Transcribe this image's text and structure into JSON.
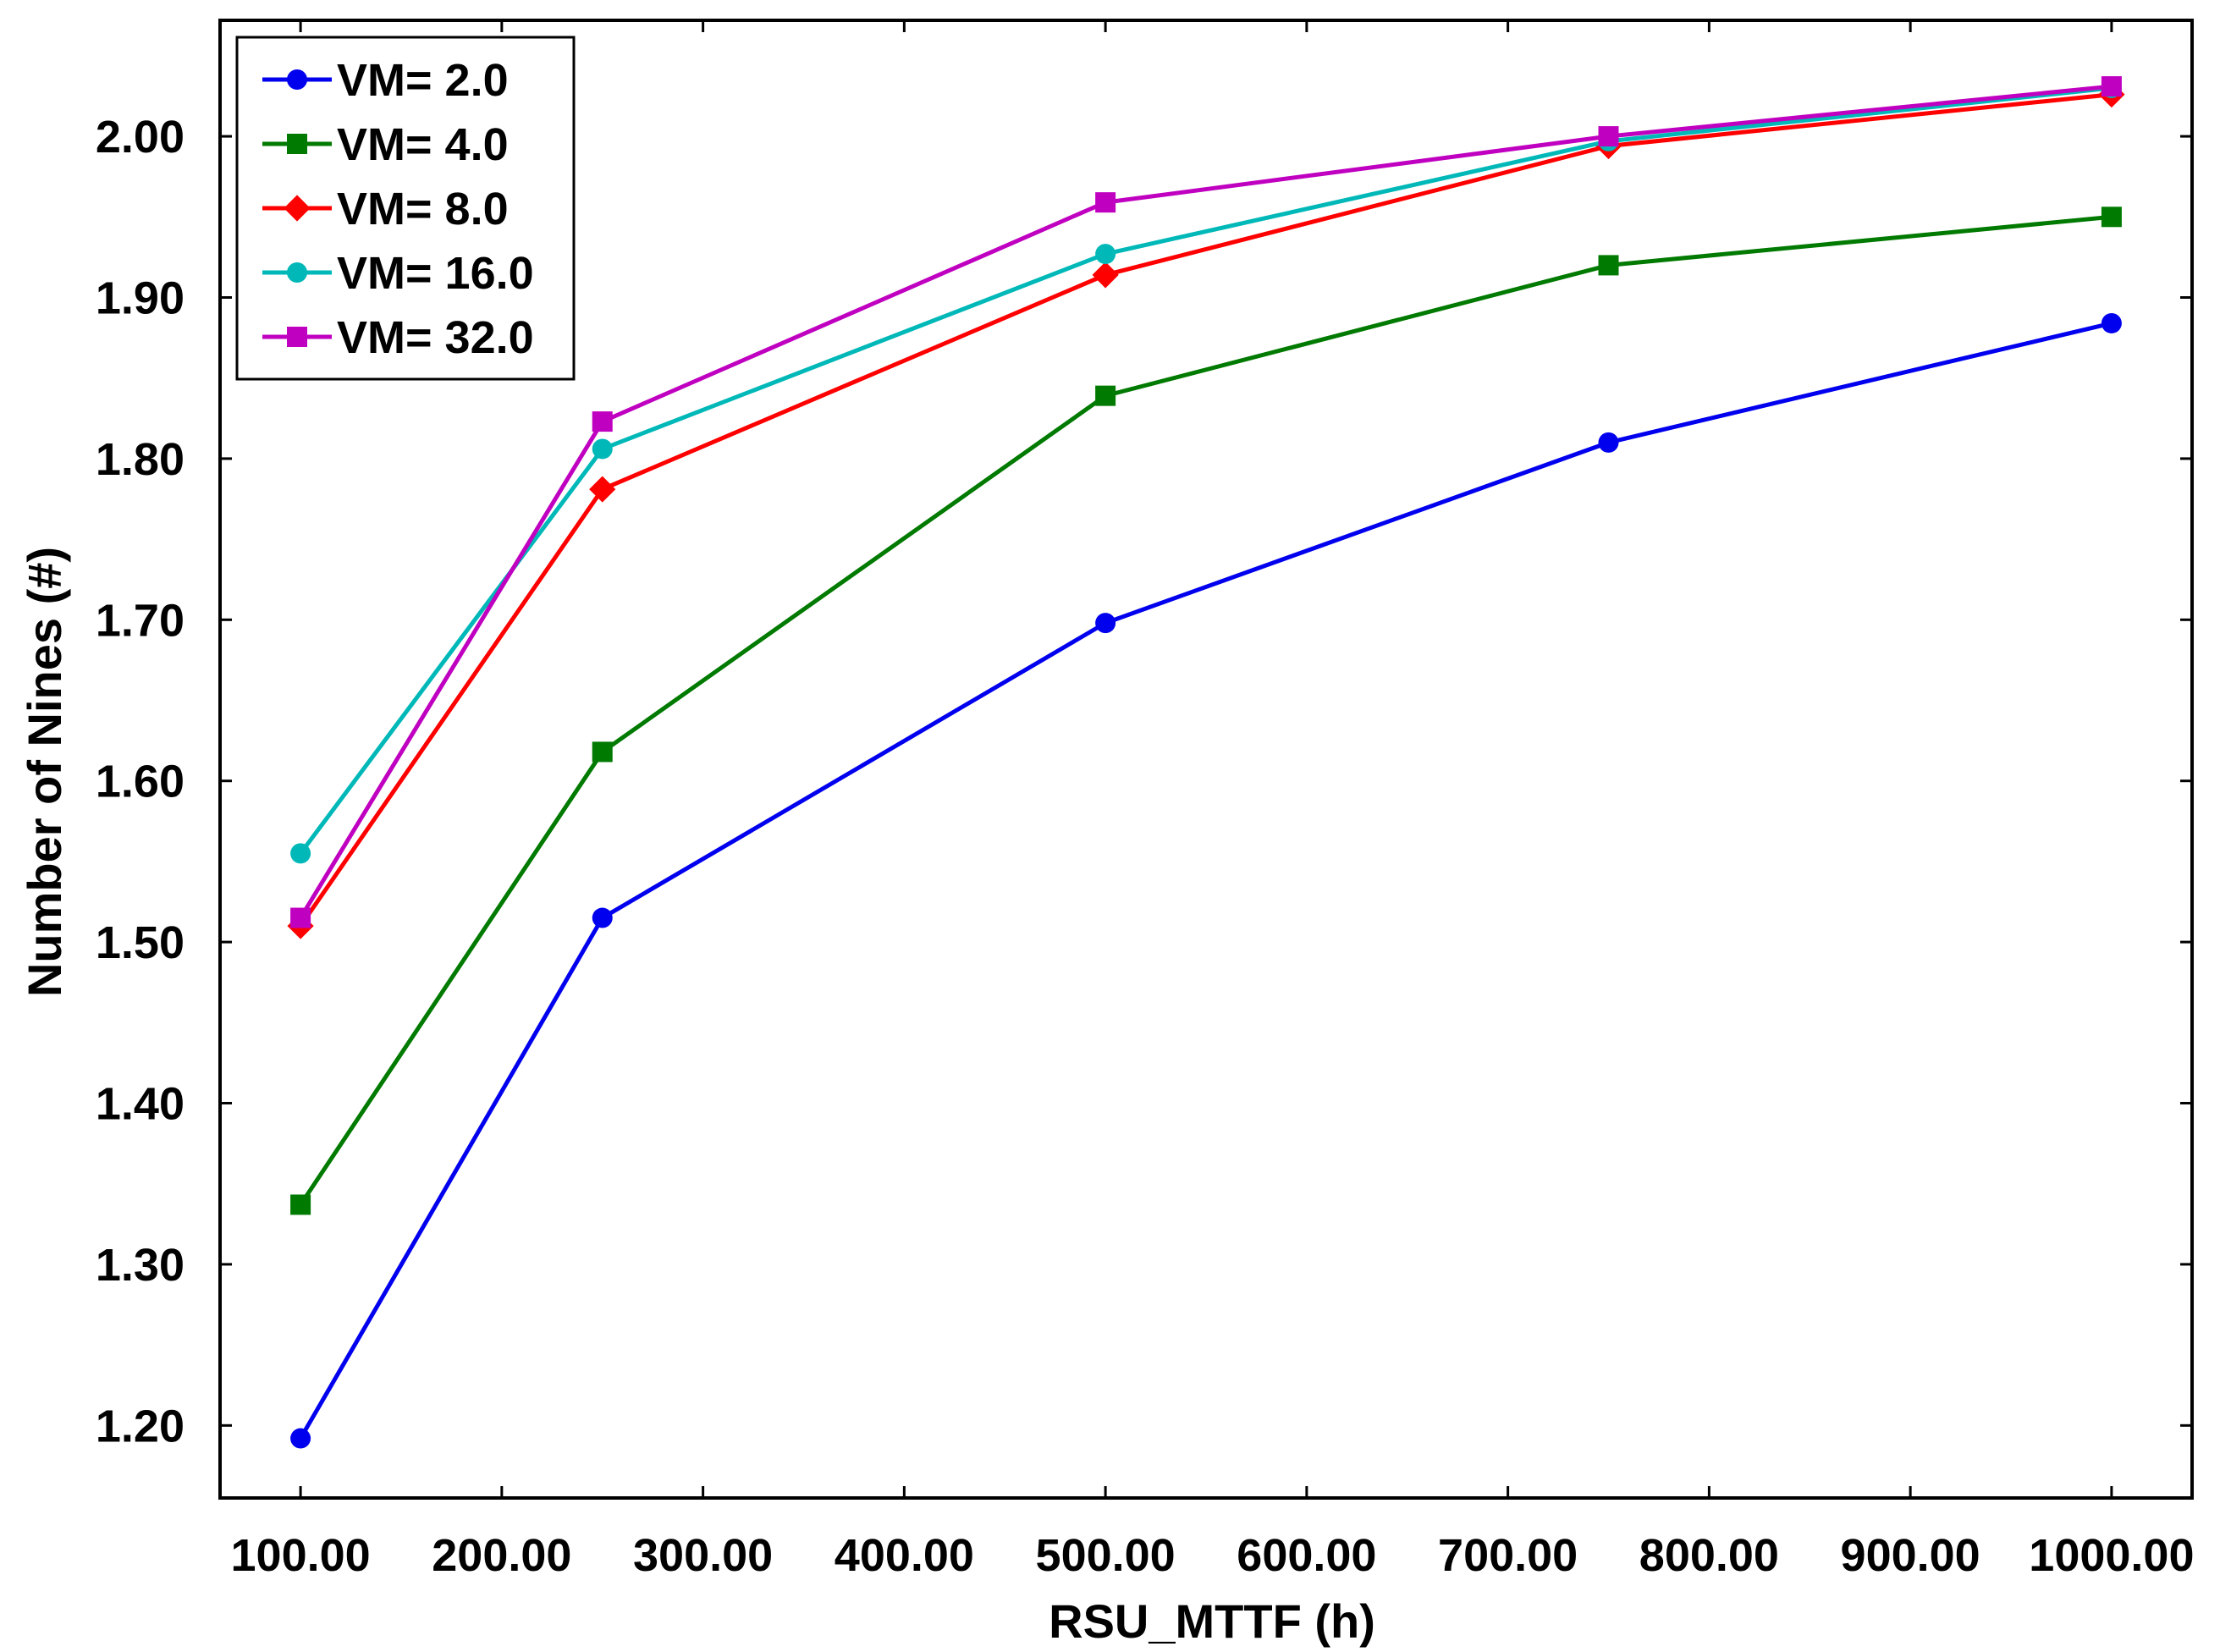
{
  "chart_data": {
    "type": "line",
    "title": "",
    "xlabel": "RSU_MTTF (h)",
    "ylabel": "Number of Nines (#)",
    "xlim": [
      60,
      1040
    ],
    "ylim": [
      1.155,
      2.072
    ],
    "x": [
      100,
      250,
      500,
      750,
      1000
    ],
    "xticks": [
      100,
      200,
      300,
      400,
      500,
      600,
      700,
      800,
      900,
      1000
    ],
    "xtick_labels": [
      "100.00",
      "200.00",
      "300.00",
      "400.00",
      "500.00",
      "600.00",
      "700.00",
      "800.00",
      "900.00",
      "1000.00"
    ],
    "yticks": [
      1.2,
      1.3,
      1.4,
      1.5,
      1.6,
      1.7,
      1.8,
      1.9,
      2.0
    ],
    "ytick_labels": [
      "1.20",
      "1.30",
      "1.40",
      "1.50",
      "1.60",
      "1.70",
      "1.80",
      "1.90",
      "2.00"
    ],
    "grid": false,
    "legend_position": "top-left",
    "series": [
      {
        "name": "VM= 2.0",
        "color": "#0000ee",
        "marker": "circle",
        "values": [
          1.192,
          1.515,
          1.698,
          1.81,
          1.884
        ]
      },
      {
        "name": "VM= 4.0",
        "color": "#007a00",
        "marker": "square",
        "values": [
          1.337,
          1.618,
          1.839,
          1.92,
          1.95
        ]
      },
      {
        "name": "VM= 8.0",
        "color": "#ff0000",
        "marker": "diamond",
        "values": [
          1.51,
          1.781,
          1.914,
          1.994,
          2.026
        ]
      },
      {
        "name": "VM= 16.0",
        "color": "#00b8b8",
        "marker": "circle",
        "values": [
          1.555,
          1.806,
          1.927,
          1.997,
          2.03
        ]
      },
      {
        "name": "VM= 32.0",
        "color": "#c000c0",
        "marker": "square",
        "values": [
          1.515,
          1.823,
          1.959,
          2.0,
          2.031
        ]
      }
    ]
  }
}
